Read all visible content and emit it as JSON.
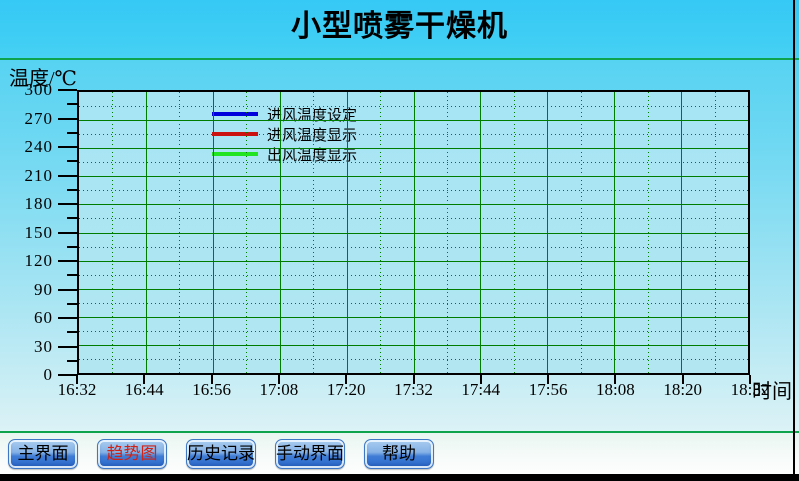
{
  "window": {
    "title": "小型喷雾干燥机"
  },
  "chart_data": {
    "type": "line",
    "title": "",
    "ylabel": "温度/℃",
    "xlabel": "时间",
    "ylim": [
      0,
      300
    ],
    "y_major_step": 30,
    "y_minor_step": 15,
    "y_ticks": [
      "300",
      "270",
      "240",
      "210",
      "180",
      "150",
      "120",
      "90",
      "60",
      "30",
      "0"
    ],
    "x_ticks": [
      "16:32",
      "16:44",
      "16:56",
      "17:08",
      "17:20",
      "17:32",
      "17:44",
      "17:56",
      "18:08",
      "18:20",
      "18:32"
    ],
    "x_minor_interval_minutes": 6,
    "grid": "major solid green, minor dotted green",
    "legend_position": "inside-top-left",
    "series": [
      {
        "name": "进风温度设定",
        "color": "#0000DC",
        "values": []
      },
      {
        "name": "进风温度显示",
        "color": "#CC1111",
        "values": []
      },
      {
        "name": "出风温度显示",
        "color": "#22E422",
        "values": []
      }
    ]
  },
  "nav": {
    "buttons": [
      {
        "label": "主界面",
        "active": false
      },
      {
        "label": "趋势图",
        "active": true
      },
      {
        "label": "历史记录",
        "active": false
      },
      {
        "label": "手动界面",
        "active": false
      },
      {
        "label": "帮助",
        "active": false
      }
    ]
  },
  "colors": {
    "header_bg": "#3ECDF4",
    "separator_green": "#0DA24C",
    "grid_green": "#007C00",
    "plot_bg": "#A9E5F3",
    "axis_black": "#000000",
    "active_nav_text": "#CE2318"
  }
}
